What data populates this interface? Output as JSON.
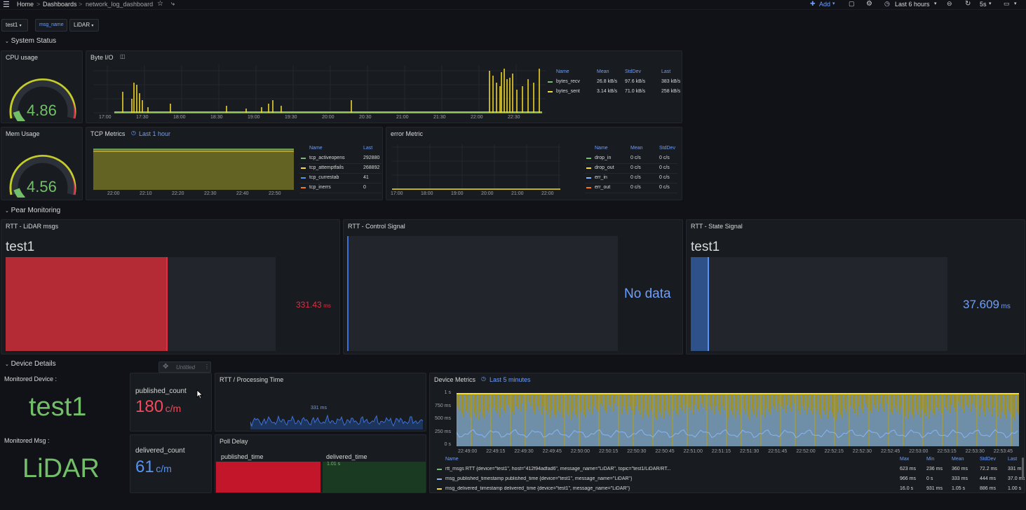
{
  "topbar": {
    "breadcrumb_home": "Home",
    "breadcrumb_dashboards": "Dashboards",
    "breadcrumb_sep1": ">",
    "breadcrumb_sep2": ">",
    "dashboard_name": "network_log_dashboard",
    "add_label": "Add",
    "time_range": "Last 6 hours",
    "refresh_interval": "5s",
    "icons": [
      "menu-icon",
      "star-icon",
      "share-icon",
      "add-icon",
      "save-icon",
      "settings-icon",
      "clock-icon",
      "zoom-out-icon",
      "refresh-icon",
      "monitor-icon"
    ]
  },
  "variables": {
    "host": "test1",
    "msg_name_label": "msg_name",
    "msg_name_value": "LiDAR"
  },
  "rows": {
    "system_status": "System Status",
    "pear_monitoring": "Pear Monitoring",
    "device_details": "Device Details"
  },
  "cpu_panel": {
    "title": "CPU usage",
    "value": "4.86",
    "fraction": 0.1
  },
  "mem_panel": {
    "title": "Mem Usage",
    "value": "4.56",
    "fraction": 0.09
  },
  "byte_io": {
    "title": "Byte I/O",
    "x_ticks": [
      "17:00",
      "17:30",
      "18:00",
      "18:30",
      "19:00",
      "19:30",
      "20:00",
      "20:30",
      "21:00",
      "21:30",
      "22:00",
      "22:30"
    ],
    "legend_headers": [
      "Name",
      "Mean",
      "StdDev",
      "Last"
    ],
    "legend_rows": [
      {
        "name": "bytes_recv",
        "mean": "26.8 kB/s",
        "stddev": "97.6 kB/s",
        "last": "383 kB/s",
        "color": "#73bf69"
      },
      {
        "name": "bytes_sent",
        "mean": "3.14 kB/s",
        "stddev": "71.0 kB/s",
        "last": "258 kB/s",
        "color": "#fade2a"
      }
    ]
  },
  "tcp_metrics": {
    "title": "TCP Metrics",
    "time_badge": "Last 1 hour",
    "x_ticks": [
      "22:00",
      "22:10",
      "22:20",
      "22:30",
      "22:40",
      "22:50"
    ],
    "legend_headers": [
      "Name",
      "Last"
    ],
    "legend_rows": [
      {
        "name": "tcp_activeopens",
        "last": "292880",
        "color": "#73bf69"
      },
      {
        "name": "tcp_attemptfails",
        "last": "268892",
        "color": "#fade2a"
      },
      {
        "name": "tcp_currestab",
        "last": "41",
        "color": "#5794f2"
      },
      {
        "name": "tcp_inerrs",
        "last": "0",
        "color": "#ff780a"
      }
    ]
  },
  "error_metric": {
    "title": "error Metric",
    "x_ticks": [
      "17:00",
      "18:00",
      "19:00",
      "20:00",
      "21:00",
      "22:00"
    ],
    "legend_headers": [
      "Name",
      "Mean",
      "StdDev"
    ],
    "legend_rows": [
      {
        "name": "drop_in",
        "mean": "0 c/s",
        "stddev": "0 c/s",
        "color": "#73bf69"
      },
      {
        "name": "drop_out",
        "mean": "0 c/s",
        "stddev": "0 c/s",
        "color": "#fade2a"
      },
      {
        "name": "err_in",
        "mean": "0 c/s",
        "stddev": "0 c/s",
        "color": "#8ab8ff"
      },
      {
        "name": "err_out",
        "mean": "0 c/s",
        "stddev": "0 c/s",
        "color": "#ff780a"
      }
    ]
  },
  "rtt_lidar": {
    "title": "RTT - LiDAR msgs",
    "series": "test1",
    "value": "331.43",
    "unit": "ms",
    "fraction": 0.6,
    "color": "#b52b35"
  },
  "rtt_control": {
    "title": "RTT - Control Signal",
    "no_data": "No data"
  },
  "rtt_state": {
    "title": "RTT - State Signal",
    "series": "test1",
    "value": "37.609",
    "unit": "ms",
    "fraction": 0.07,
    "color": "#3d71d9"
  },
  "untitled_widget": {
    "label": "Untitled"
  },
  "monitored_device": {
    "label": "Monitored Device :",
    "value": "test1"
  },
  "monitored_msg": {
    "label": "Monitored Msg :",
    "value": "LiDAR"
  },
  "published_count": {
    "title": "published_count",
    "value": "180",
    "unit": "c/m",
    "color": "#f2495c"
  },
  "delivered_count": {
    "title": "delivered_count",
    "value": "61",
    "unit": "c/m",
    "color": "#5794f2"
  },
  "rtt_processing": {
    "title": "RTT / Processing Time",
    "annotation": "331 ms"
  },
  "poll_delay": {
    "title": "Poll Delay",
    "col1": "published_time",
    "col2": "delivered_time",
    "col2_value": "1.01 s"
  },
  "device_metrics": {
    "title": "Device Metrics",
    "time_badge": "Last 5 minutes",
    "y_ticks": [
      "1 s",
      "750 ms",
      "500 ms",
      "250 ms",
      "0 s"
    ],
    "x_ticks": [
      "22:49:00",
      "22:49:15",
      "22:49:30",
      "22:49:45",
      "22:50:00",
      "22:50:15",
      "22:50:30",
      "22:50:45",
      "22:51:00",
      "22:51:15",
      "22:51:30",
      "22:51:45",
      "22:52:00",
      "22:52:15",
      "22:52:30",
      "22:52:45",
      "22:53:00",
      "22:53:15",
      "22:53:30",
      "22:53:45"
    ],
    "legend_headers": [
      "Name",
      "Max",
      "Min",
      "Mean",
      "StdDev",
      "Last"
    ],
    "legend_rows": [
      {
        "name": "rtt_msgs RTT {device=\"test1\", host=\"412f94adfad6\", message_name=\"LiDAR\", topic=\"test1/LiDAR/RT...",
        "max": "623 ms",
        "min": "236 ms",
        "mean": "360 ms",
        "stddev": "72.2 ms",
        "last": "331 ms",
        "color": "#73bf69"
      },
      {
        "name": "msg_published_timestamp published_time {device=\"test1\", message_name=\"LiDAR\"}",
        "max": "966 ms",
        "min": "0 s",
        "mean": "333 ms",
        "stddev": "444 ms",
        "last": "37.0 ms",
        "color": "#8ab8ff"
      },
      {
        "name": "msg_delivered_timestamp delivered_time {device=\"test1\", message_name=\"LiDAR\"}",
        "max": "16.0 s",
        "min": "931 ms",
        "mean": "1.05 s",
        "stddev": "886 ms",
        "last": "1.00 s",
        "color": "#fade2a"
      }
    ]
  }
}
